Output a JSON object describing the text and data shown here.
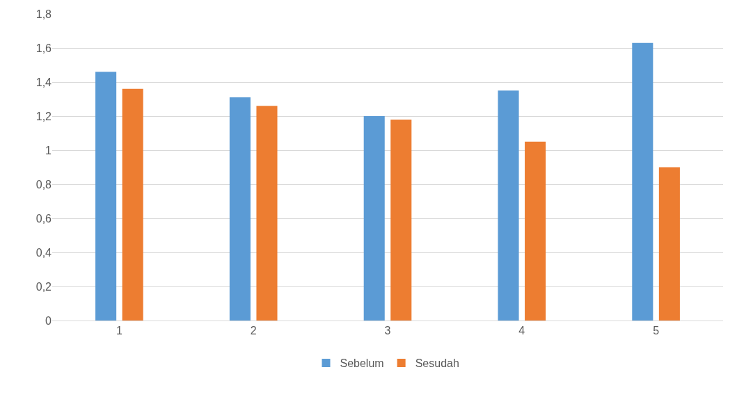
{
  "chart_data": {
    "type": "bar",
    "categories": [
      "1",
      "2",
      "3",
      "4",
      "5"
    ],
    "series": [
      {
        "name": "Sebelum",
        "color": "#5b9bd5",
        "values": [
          1.46,
          1.31,
          1.2,
          1.35,
          1.63
        ]
      },
      {
        "name": "Sesudah",
        "color": "#ed7d31",
        "values": [
          1.36,
          1.26,
          1.18,
          1.05,
          0.9
        ]
      }
    ],
    "ylim": [
      0,
      1.8
    ],
    "yticks": [
      0,
      {
        "value": 0.2,
        "label": "0,2"
      },
      {
        "value": 0.4,
        "label": "0,4"
      },
      {
        "value": 0.6,
        "label": "0,6"
      },
      {
        "value": 0.8,
        "label": "0,8"
      },
      1,
      {
        "value": 1.2,
        "label": "1,2"
      },
      {
        "value": 1.4,
        "label": "1,4"
      },
      {
        "value": 1.6,
        "label": "1,6"
      },
      {
        "value": 1.8,
        "label": "1,8"
      }
    ],
    "grid": "y",
    "legend": "bottom"
  }
}
